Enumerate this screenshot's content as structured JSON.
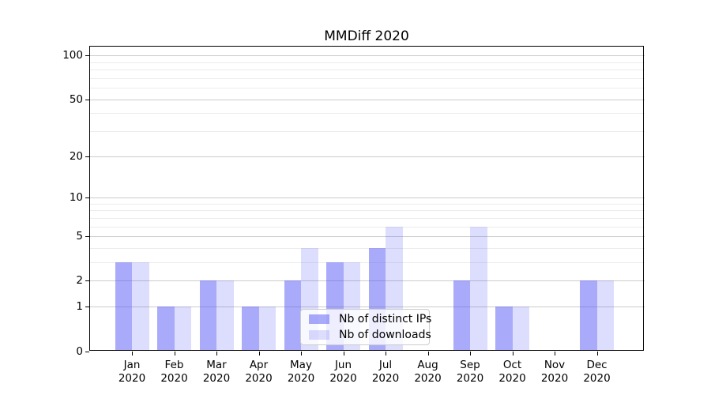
{
  "figure": {
    "background": "#ffffff"
  },
  "chart_data": {
    "type": "bar",
    "title": "MMDiff 2020",
    "categories": [
      "Jan 2020",
      "Feb 2020",
      "Mar 2020",
      "Apr 2020",
      "May 2020",
      "Jun 2020",
      "Jul 2020",
      "Aug 2020",
      "Sep 2020",
      "Oct 2020",
      "Nov 2020",
      "Dec 2020"
    ],
    "series": [
      {
        "name": "Nb of distinct IPs",
        "color": "rgba(85,85,245,0.5)",
        "values": [
          3,
          1,
          2,
          1,
          2,
          3,
          4,
          0,
          2,
          1,
          0,
          2
        ]
      },
      {
        "name": "Nb of downloads",
        "color": "rgba(85,85,245,0.2)",
        "values": [
          3,
          1,
          2,
          1,
          4,
          3,
          6,
          0,
          6,
          1,
          0,
          2
        ]
      }
    ],
    "xlabel": "",
    "ylabel": "",
    "y_scale": "log1p",
    "y_ticks": [
      0,
      1,
      2,
      5,
      10,
      20,
      50,
      100
    ],
    "y_minor_ticks": [
      3,
      4,
      6,
      7,
      8,
      9,
      30,
      40,
      60,
      70,
      80,
      90
    ],
    "ylim": [
      0,
      116
    ],
    "grid": "on",
    "legend_position": "lower center",
    "grid_major_color": "#cbcbcb",
    "grid_minor_color": "#ececec"
  }
}
